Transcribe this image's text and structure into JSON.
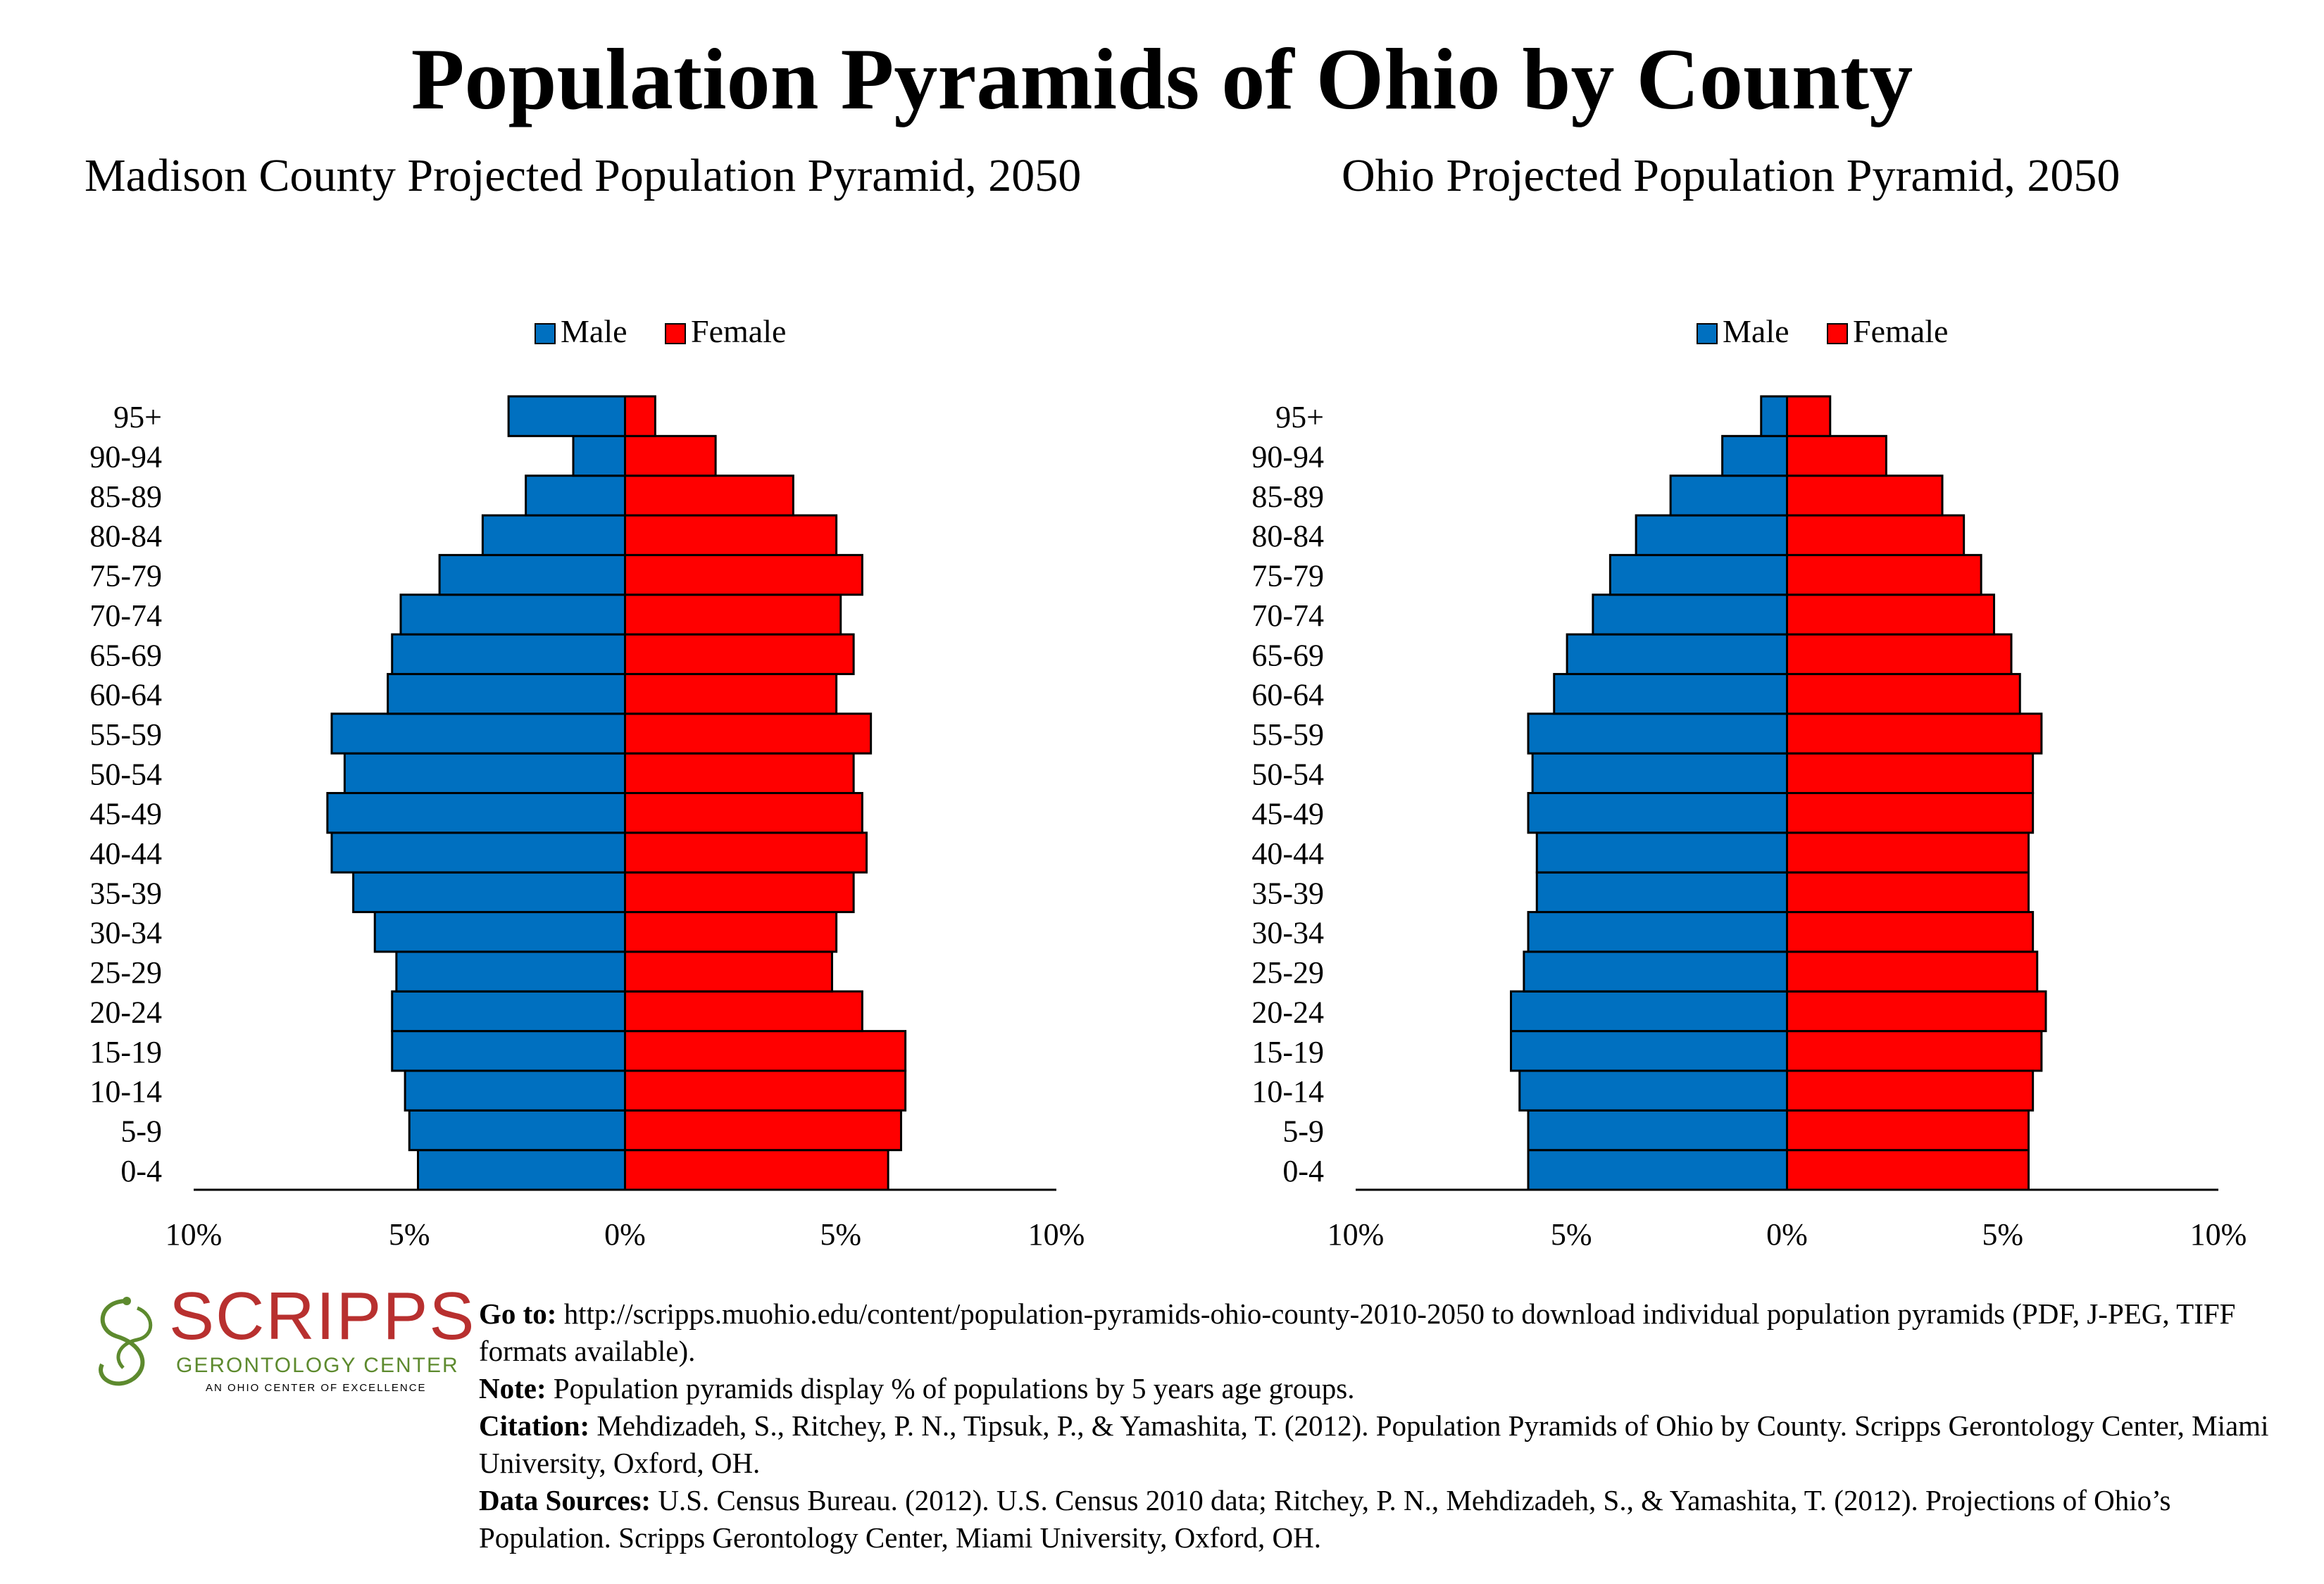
{
  "title": "Population Pyramids of Ohio by County",
  "colors": {
    "male": "#0070c0",
    "female": "#ff0000",
    "logo_red": "#b8302f",
    "logo_green": "#5d8a2e"
  },
  "chart_data": [
    {
      "type": "bar",
      "orientation": "horizontal-pyramid",
      "title": "Madison County Projected Population Pyramid, 2050",
      "categories": [
        "0-4",
        "5-9",
        "10-14",
        "15-19",
        "20-24",
        "25-29",
        "30-34",
        "35-39",
        "40-44",
        "45-49",
        "50-54",
        "55-59",
        "60-64",
        "65-69",
        "70-74",
        "75-79",
        "80-84",
        "85-89",
        "90-94",
        "95+"
      ],
      "series": [
        {
          "name": "Male",
          "values": [
            4.8,
            5.0,
            5.1,
            5.4,
            5.4,
            5.3,
            5.8,
            6.3,
            6.8,
            6.9,
            6.5,
            6.8,
            5.5,
            5.4,
            5.2,
            4.3,
            3.3,
            2.3,
            1.2,
            2.7
          ]
        },
        {
          "name": "Female",
          "values": [
            6.1,
            6.4,
            6.5,
            6.5,
            5.5,
            4.8,
            4.9,
            5.3,
            5.6,
            5.5,
            5.3,
            5.7,
            4.9,
            5.3,
            5.0,
            5.5,
            4.9,
            3.9,
            2.1,
            0.7
          ]
        }
      ],
      "xlim": [
        -10,
        10
      ],
      "xticks": [
        "10%",
        "5%",
        "0%",
        "5%",
        "10%"
      ],
      "legend": "top-center"
    },
    {
      "type": "bar",
      "orientation": "horizontal-pyramid",
      "title": "Ohio Projected Population Pyramid, 2050",
      "categories": [
        "0-4",
        "5-9",
        "10-14",
        "15-19",
        "20-24",
        "25-29",
        "30-34",
        "35-39",
        "40-44",
        "45-49",
        "50-54",
        "55-59",
        "60-64",
        "65-69",
        "70-74",
        "75-79",
        "80-84",
        "85-89",
        "90-94",
        "95+"
      ],
      "series": [
        {
          "name": "Male",
          "values": [
            6.0,
            6.0,
            6.2,
            6.4,
            6.4,
            6.1,
            6.0,
            5.8,
            5.8,
            6.0,
            5.9,
            6.0,
            5.4,
            5.1,
            4.5,
            4.1,
            3.5,
            2.7,
            1.5,
            0.6
          ]
        },
        {
          "name": "Female",
          "values": [
            5.6,
            5.6,
            5.7,
            5.9,
            6.0,
            5.8,
            5.7,
            5.6,
            5.6,
            5.7,
            5.7,
            5.9,
            5.4,
            5.2,
            4.8,
            4.5,
            4.1,
            3.6,
            2.3,
            1.0
          ]
        }
      ],
      "xlim": [
        -10,
        10
      ],
      "xticks": [
        "10%",
        "5%",
        "0%",
        "5%",
        "10%"
      ],
      "legend": "top-center"
    }
  ],
  "logo": {
    "name": "SCRIPPS",
    "subtitle": "GERONTOLOGY CENTER",
    "tagline": "AN OHIO CENTER OF EXCELLENCE"
  },
  "notes": {
    "goto_label": "Go to:",
    "goto_text": " http://scripps.muohio.edu/content/population-pyramids-ohio-county-2010-2050 to download individual population pyramids (PDF, J-PEG, TIFF formats available).",
    "note_label": "Note:",
    "note_text": " Population pyramids display % of populations by 5 years age groups.",
    "citation_label": "Citation:",
    "citation_text": " Mehdizadeh, S., Ritchey, P. N., Tipsuk, P., & Yamashita, T. (2012). Population Pyramids of Ohio by County. Scripps Gerontology Center, Miami University, Oxford, OH.",
    "sources_label": "Data Sources:",
    "sources_text": " U.S. Census Bureau. (2012). U.S. Census 2010 data; Ritchey, P. N., Mehdizadeh, S., & Yamashita, T. (2012). Projections of Ohio’s Population. Scripps Gerontology Center, Miami University, Oxford, OH."
  }
}
